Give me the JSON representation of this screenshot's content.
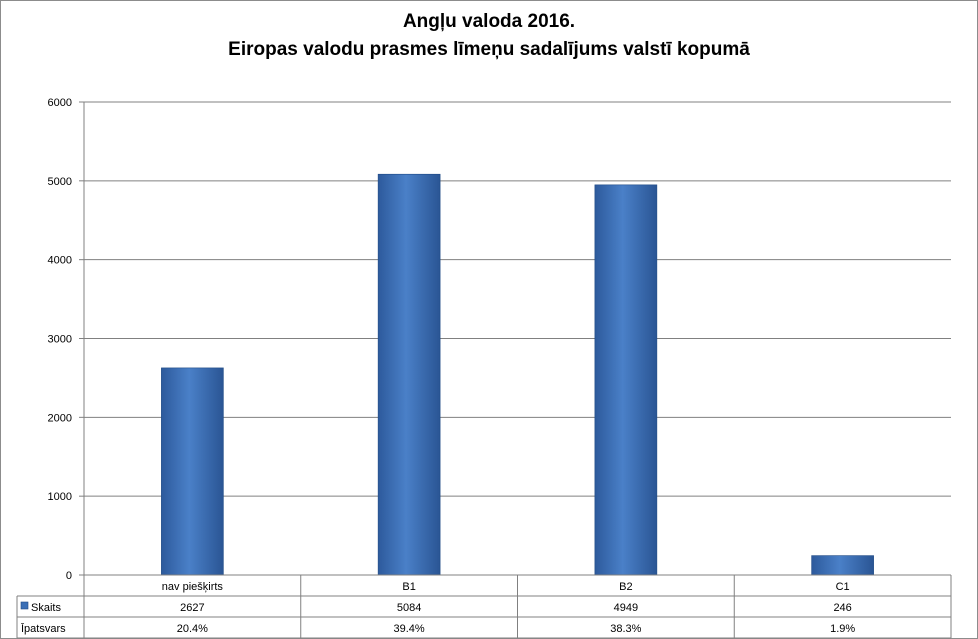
{
  "chart_data": {
    "type": "bar",
    "title": "Angļu valoda 2016.",
    "subtitle": "Eiropas valodu prasmes līmeņu sadalījums valstī kopumā",
    "categories": [
      "nav piešķirts",
      "B1",
      "B2",
      "C1"
    ],
    "series": [
      {
        "name": "Skaits",
        "values": [
          2627,
          5084,
          4949,
          246
        ],
        "color": "#3b6fb6"
      }
    ],
    "table_rows": [
      {
        "label": "Skaits",
        "values": [
          "2627",
          "5084",
          "4949",
          "246"
        ],
        "legend_key": true
      },
      {
        "label": "Īpatsvars",
        "values": [
          "20.4%",
          "39.4%",
          "38.3%",
          "1.9%"
        ],
        "legend_key": false
      }
    ],
    "y_ticks": [
      "0",
      "1000",
      "2000",
      "3000",
      "4000",
      "5000",
      "6000"
    ],
    "ylim": [
      0,
      6000
    ],
    "grid": true,
    "legend": "data-table"
  }
}
